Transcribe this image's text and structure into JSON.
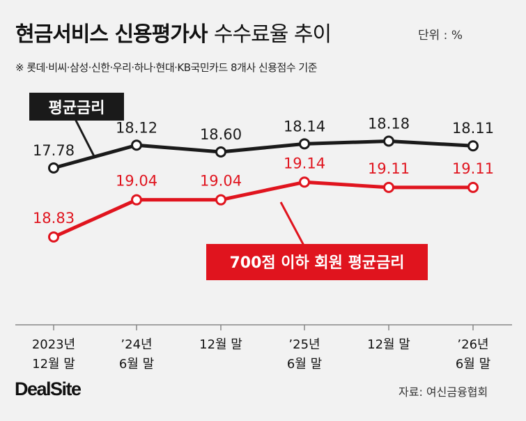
{
  "header": {
    "title_bold": "현금서비스 신용평가사",
    "title_light": "수수료율 추이",
    "unit": "단위 : %",
    "subtitle": "※ 롯데·비씨·삼성·신한·우리·하나·현대·KB국민카드 8개사 신용점수 기준"
  },
  "footer": {
    "source": "자료: 여신금융협회",
    "logo": "DealSite"
  },
  "colors": {
    "series1": "#1a1a1a",
    "series2": "#e0141e",
    "axis": "#888888"
  },
  "chart_data": {
    "type": "line",
    "categories": [
      [
        "2023년",
        "12월 말"
      ],
      [
        "’24년",
        "6월 말"
      ],
      [
        "12월 말",
        ""
      ],
      [
        "’25년",
        "6월 말"
      ],
      [
        "12월 말",
        ""
      ],
      [
        "’26년",
        "6월 말"
      ]
    ],
    "series": [
      {
        "name": "평균금리",
        "values": [
          17.78,
          18.12,
          18.6,
          18.14,
          18.18,
          18.11
        ],
        "labels": [
          "17.78",
          "18.12",
          "18.60",
          "18.14",
          "18.18",
          "18.11"
        ],
        "color": "#1a1a1a"
      },
      {
        "name": "700점 이하 회원 평균금리",
        "values": [
          18.83,
          19.04,
          19.04,
          19.14,
          19.11,
          19.11
        ],
        "labels": [
          "18.83",
          "19.04",
          "19.04",
          "19.14",
          "19.11",
          "19.11"
        ],
        "color": "#e0141e"
      }
    ],
    "legend": "inline callouts",
    "grid": false
  }
}
